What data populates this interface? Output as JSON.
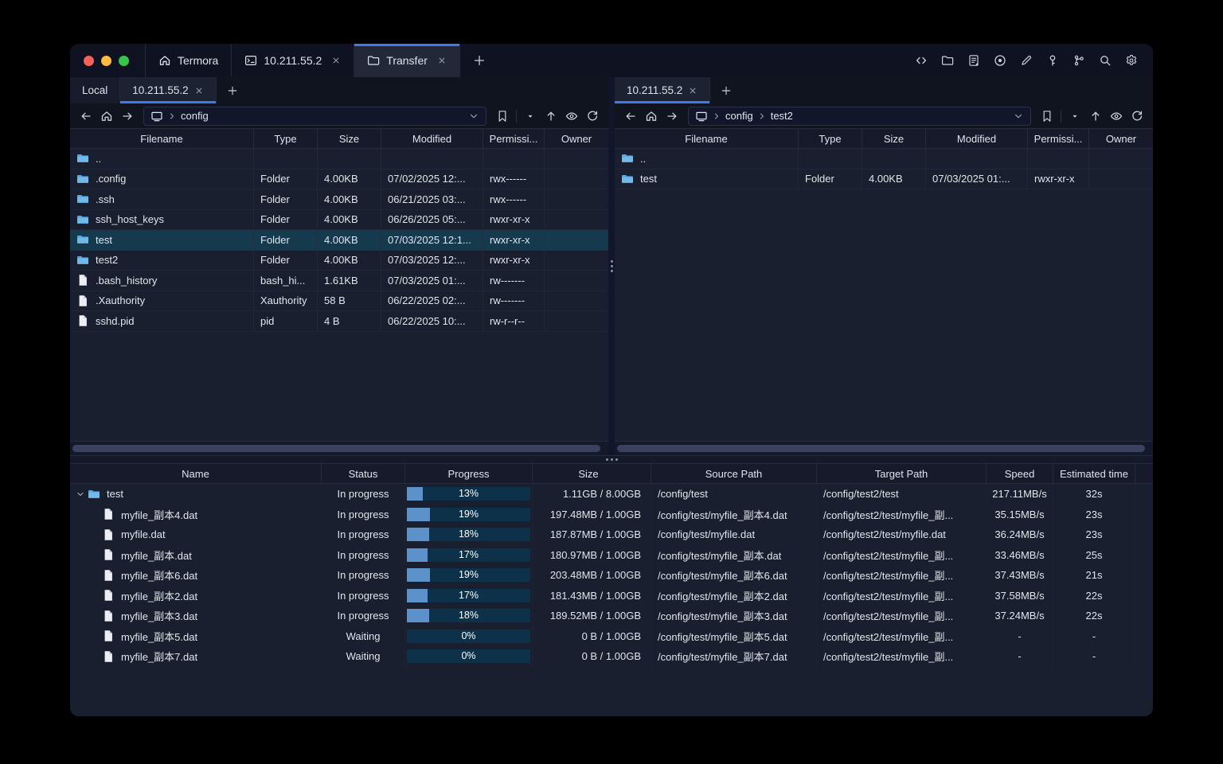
{
  "window": {
    "accent_color": "#3f78f1",
    "traffic_light_colors": {
      "close": "#f8605a",
      "minimize": "#fcbb40",
      "zoom": "#34c648"
    },
    "tabs": [
      {
        "label": "Termora",
        "icon": "home-icon"
      },
      {
        "label": "10.211.55.2",
        "icon": "terminal-icon",
        "close": "×"
      },
      {
        "label": "Transfer",
        "icon": "folder-icon",
        "close": "×",
        "active": true
      }
    ],
    "new_tab_label": "+",
    "action_icons": [
      "code-icon",
      "folder-icon",
      "log-icon",
      "record-icon",
      "edit-icon",
      "key-icon",
      "keychain-icon",
      "search-icon",
      "settings-icon"
    ]
  },
  "left_pane": {
    "tabs": [
      {
        "label": "Local"
      },
      {
        "label": "10.211.55.2",
        "close": "×",
        "active": true
      }
    ],
    "new_tab_label": "+",
    "path_segments": [
      "config"
    ],
    "columns": [
      "Filename",
      "Type",
      "Size",
      "Modified",
      "Permissi...",
      "Owner"
    ],
    "rows": [
      {
        "name": "..",
        "icon": "folder",
        "type": "",
        "size": "",
        "modified": "",
        "permissions": "",
        "owner": ""
      },
      {
        "name": ".config",
        "icon": "folder",
        "type": "Folder",
        "size": "4.00KB",
        "modified": "07/02/2025 12:...",
        "permissions": "rwx------",
        "owner": ""
      },
      {
        "name": ".ssh",
        "icon": "folder",
        "type": "Folder",
        "size": "4.00KB",
        "modified": "06/21/2025 03:...",
        "permissions": "rwx------",
        "owner": ""
      },
      {
        "name": "ssh_host_keys",
        "icon": "folder",
        "type": "Folder",
        "size": "4.00KB",
        "modified": "06/26/2025 05:...",
        "permissions": "rwxr-xr-x",
        "owner": ""
      },
      {
        "name": "test",
        "icon": "folder",
        "type": "Folder",
        "size": "4.00KB",
        "modified": "07/03/2025 12:1...",
        "permissions": "rwxr-xr-x",
        "owner": "",
        "selected": true
      },
      {
        "name": "test2",
        "icon": "folder",
        "type": "Folder",
        "size": "4.00KB",
        "modified": "07/03/2025 12:...",
        "permissions": "rwxr-xr-x",
        "owner": ""
      },
      {
        "name": ".bash_history",
        "icon": "file",
        "type": "bash_hi...",
        "size": "1.61KB",
        "modified": "07/03/2025 01:...",
        "permissions": "rw-------",
        "owner": ""
      },
      {
        "name": ".Xauthority",
        "icon": "file",
        "type": "Xauthority",
        "size": "58 B",
        "modified": "06/22/2025 02:...",
        "permissions": "rw-------",
        "owner": ""
      },
      {
        "name": "sshd.pid",
        "icon": "file",
        "type": "pid",
        "size": "4 B",
        "modified": "06/22/2025 10:...",
        "permissions": "rw-r--r--",
        "owner": ""
      }
    ]
  },
  "right_pane": {
    "tabs": [
      {
        "label": "10.211.55.2",
        "close": "×",
        "active": true
      }
    ],
    "new_tab_label": "+",
    "path_segments": [
      "config",
      "test2"
    ],
    "columns": [
      "Filename",
      "Type",
      "Size",
      "Modified",
      "Permissi...",
      "Owner"
    ],
    "rows": [
      {
        "name": "..",
        "icon": "folder",
        "type": "",
        "size": "",
        "modified": "",
        "permissions": "",
        "owner": ""
      },
      {
        "name": "test",
        "icon": "folder",
        "type": "Folder",
        "size": "4.00KB",
        "modified": "07/03/2025 01:...",
        "permissions": "rwxr-xr-x",
        "owner": ""
      }
    ]
  },
  "transfer": {
    "columns": [
      "Name",
      "Status",
      "Progress",
      "Size",
      "Source Path",
      "Target Path",
      "Speed",
      "Estimated time"
    ],
    "rows": [
      {
        "name": "test",
        "icon": "folder",
        "depth": "0",
        "status": "In progress",
        "progress": 13,
        "progress_label": "13%",
        "size": "1.11GB / 8.00GB",
        "source": "/config/test",
        "target": "/config/test2/test",
        "speed": "217.11MB/s",
        "eta": "32s"
      },
      {
        "name": "myfile_副本4.dat",
        "icon": "file",
        "depth": "1",
        "status": "In progress",
        "progress": 19,
        "progress_label": "19%",
        "size": "197.48MB / 1.00GB",
        "source": "/config/test/myfile_副本4.dat",
        "target": "/config/test2/test/myfile_副...",
        "speed": "35.15MB/s",
        "eta": "23s"
      },
      {
        "name": "myfile.dat",
        "icon": "file",
        "depth": "1",
        "status": "In progress",
        "progress": 18,
        "progress_label": "18%",
        "size": "187.87MB / 1.00GB",
        "source": "/config/test/myfile.dat",
        "target": "/config/test2/test/myfile.dat",
        "speed": "36.24MB/s",
        "eta": "23s"
      },
      {
        "name": "myfile_副本.dat",
        "icon": "file",
        "depth": "1",
        "status": "In progress",
        "progress": 17,
        "progress_label": "17%",
        "size": "180.97MB / 1.00GB",
        "source": "/config/test/myfile_副本.dat",
        "target": "/config/test2/test/myfile_副...",
        "speed": "33.46MB/s",
        "eta": "25s"
      },
      {
        "name": "myfile_副本6.dat",
        "icon": "file",
        "depth": "1",
        "status": "In progress",
        "progress": 19,
        "progress_label": "19%",
        "size": "203.48MB / 1.00GB",
        "source": "/config/test/myfile_副本6.dat",
        "target": "/config/test2/test/myfile_副...",
        "speed": "37.43MB/s",
        "eta": "21s"
      },
      {
        "name": "myfile_副本2.dat",
        "icon": "file",
        "depth": "1",
        "status": "In progress",
        "progress": 17,
        "progress_label": "17%",
        "size": "181.43MB / 1.00GB",
        "source": "/config/test/myfile_副本2.dat",
        "target": "/config/test2/test/myfile_副...",
        "speed": "37.58MB/s",
        "eta": "22s"
      },
      {
        "name": "myfile_副本3.dat",
        "icon": "file",
        "depth": "1",
        "status": "In progress",
        "progress": 18,
        "progress_label": "18%",
        "size": "189.52MB / 1.00GB",
        "source": "/config/test/myfile_副本3.dat",
        "target": "/config/test2/test/myfile_副...",
        "speed": "37.24MB/s",
        "eta": "22s"
      },
      {
        "name": "myfile_副本5.dat",
        "icon": "file",
        "depth": "1",
        "status": "Waiting",
        "progress": 0,
        "progress_label": "0%",
        "size": "0 B / 1.00GB",
        "source": "/config/test/myfile_副本5.dat",
        "target": "/config/test2/test/myfile_副...",
        "speed": "-",
        "eta": "-"
      },
      {
        "name": "myfile_副本7.dat",
        "icon": "file",
        "depth": "1",
        "status": "Waiting",
        "progress": 0,
        "progress_label": "0%",
        "size": "0 B / 1.00GB",
        "source": "/config/test/myfile_副本7.dat",
        "target": "/config/test2/test/myfile_副...",
        "speed": "-",
        "eta": "-"
      }
    ]
  }
}
